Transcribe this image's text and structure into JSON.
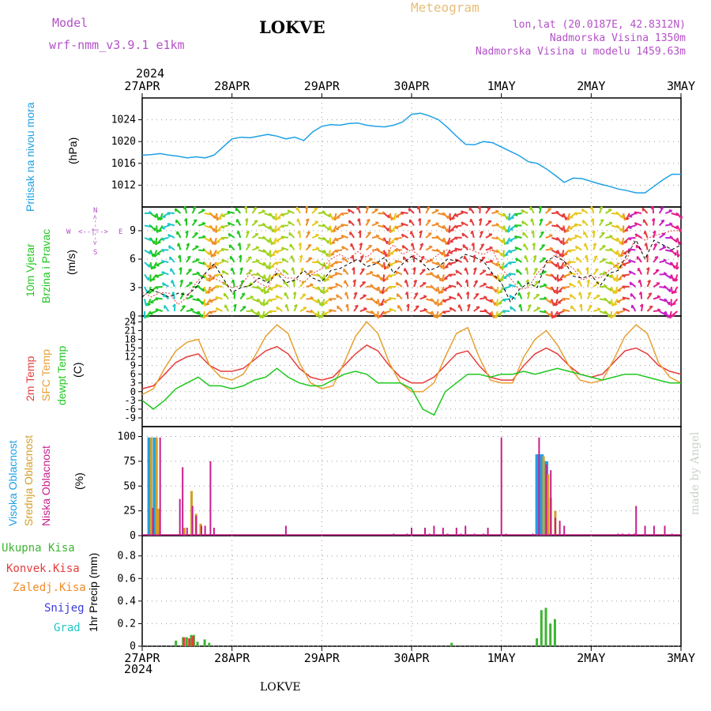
{
  "header": {
    "model_label": "Model",
    "model_name": "wrf-nmm_v3.9.1 e1km",
    "station": "LOKVE",
    "meteogram": "Meteogram",
    "lonlat": "lon,lat (20.0187E, 42.8312N)",
    "elevation": "Nadmorska Visina 1350m",
    "elevation_model": "Nadmorska Visina u modelu 1459.63m",
    "footer_station": "LOKVE",
    "watermark": "made by Angel"
  },
  "colors": {
    "pressure": "#1ea0e6",
    "temp2m": "#e63c3c",
    "sfc": "#e6a032",
    "dew": "#1ec81e",
    "cloud_high": "#1ea0e6",
    "cloud_mid": "#d2a028",
    "cloud_low": "#c81e8c",
    "precip_total": "#3cb432",
    "precip_conv": "#e63c3c",
    "precip_frz": "#f08c28",
    "precip_snow": "#3c3cdc",
    "precip_grad": "#1ec8c8",
    "wind_speed": "#000000",
    "wind_gust": "#e63c3c"
  },
  "time_axis": {
    "top_year": "2024",
    "bottom_year": "2024",
    "labels": [
      "27APR",
      "28APR",
      "29APR",
      "30APR",
      "1MAY",
      "2MAY",
      "3MAY"
    ]
  },
  "panel_labels": {
    "pressure": {
      "title": "Pritisak na nivou mora",
      "unit": "(hPa)"
    },
    "wind": {
      "title1": "10m Vjetar",
      "title2": "Brzina i Pravac",
      "unit": "(m/s)",
      "compass_n": "N",
      "compass_w": "W",
      "compass_e": "E",
      "compass_s": "S",
      "compass_arrow_v": "<--|-->",
      "compass_arrow_h": "<--|-->"
    },
    "temp": {
      "t2m": "2m Temp",
      "sfc": "SFC Temp",
      "dew": "dewpt Temp",
      "unit": "(C)"
    },
    "cloud": {
      "high": "Visoka Oblacnost",
      "mid": "Srednja Oblacnost",
      "low": "Niska Oblacnost",
      "unit": "(%)"
    },
    "precip": {
      "total": "Ukupna Kisa",
      "conv": "Konvek.Kisa",
      "frz": "Zaledj.Kisa",
      "snow": "Snijeg",
      "grad": "Grad",
      "unit": "1hr Precip (mm)"
    }
  },
  "chart_data": [
    {
      "type": "line",
      "name": "pressure",
      "x_days": [
        0,
        0.1,
        0.2,
        0.3,
        0.4,
        0.5,
        0.6,
        0.7,
        0.8,
        0.9,
        1.0,
        1.1,
        1.2,
        1.3,
        1.4,
        1.5,
        1.6,
        1.7,
        1.8,
        1.9,
        2.0,
        2.1,
        2.2,
        2.3,
        2.4,
        2.5,
        2.6,
        2.7,
        2.8,
        2.9,
        3.0,
        3.1,
        3.2,
        3.3,
        3.4,
        3.5,
        3.6,
        3.7,
        3.8,
        3.9,
        4.0,
        4.1,
        4.2,
        4.3,
        4.4,
        4.5,
        4.6,
        4.7,
        4.8,
        4.9,
        5.0,
        5.1,
        5.2,
        5.3,
        5.4,
        5.5,
        5.6,
        5.7,
        5.8,
        5.9,
        6.0
      ],
      "values": [
        1017.5,
        1017.6,
        1017.8,
        1017.5,
        1017.3,
        1017.0,
        1017.2,
        1017.0,
        1017.5,
        1019.0,
        1020.5,
        1020.8,
        1020.7,
        1021.0,
        1021.3,
        1021.0,
        1020.5,
        1020.8,
        1020.2,
        1021.8,
        1022.8,
        1023.1,
        1023.0,
        1023.3,
        1023.4,
        1023.0,
        1022.8,
        1022.7,
        1023.0,
        1023.6,
        1025.0,
        1025.2,
        1024.7,
        1024.0,
        1022.6,
        1021.0,
        1019.5,
        1019.4,
        1020.0,
        1019.8,
        1019.0,
        1018.2,
        1017.4,
        1016.3,
        1016.0,
        1015.0,
        1013.8,
        1012.5,
        1013.3,
        1013.2,
        1012.7,
        1012.2,
        1011.8,
        1011.3,
        1011.0,
        1010.6,
        1010.6,
        1011.8,
        1013.0,
        1014.0,
        1014.0
      ],
      "ylim": [
        1008,
        1028
      ],
      "yticks": [
        1012,
        1016,
        1020,
        1024
      ]
    },
    {
      "type": "line",
      "name": "wind",
      "x_days": [
        0,
        0.1,
        0.2,
        0.3,
        0.4,
        0.5,
        0.6,
        0.7,
        0.8,
        0.9,
        1.0,
        1.1,
        1.2,
        1.3,
        1.4,
        1.5,
        1.6,
        1.7,
        1.8,
        1.9,
        2.0,
        2.1,
        2.2,
        2.3,
        2.4,
        2.5,
        2.6,
        2.7,
        2.8,
        2.9,
        3.0,
        3.1,
        3.2,
        3.3,
        3.4,
        3.5,
        3.6,
        3.7,
        3.8,
        3.9,
        4.0,
        4.1,
        4.2,
        4.3,
        4.4,
        4.5,
        4.6,
        4.7,
        4.8,
        4.9,
        5.0,
        5.1,
        5.2,
        5.3,
        5.4,
        5.5,
        5.6,
        5.7,
        5.8,
        5.9,
        6.0
      ],
      "speed": [
        2.0,
        2.8,
        2.4,
        2.0,
        2.4,
        2.2,
        3.0,
        4.5,
        5.5,
        4.0,
        2.5,
        3.0,
        3.2,
        4.0,
        3.5,
        4.5,
        3.5,
        3.8,
        4.8,
        4.0,
        3.6,
        4.8,
        5.0,
        5.5,
        6.0,
        5.2,
        5.5,
        6.2,
        4.5,
        5.5,
        6.3,
        5.8,
        4.8,
        5.2,
        6.0,
        5.8,
        6.5,
        6.2,
        5.8,
        4.5,
        3.5,
        1.5,
        2.8,
        3.5,
        3.0,
        5.8,
        6.3,
        5.8,
        4.2,
        4.0,
        4.3,
        3.2,
        4.5,
        4.8,
        6.5,
        8.0,
        6.0,
        8.0,
        7.5,
        7.0,
        7.5
      ],
      "gust": [
        2.5,
        2.0,
        2.5,
        2.4,
        1.2,
        2.0,
        3.5,
        4.5,
        4.0,
        3.5,
        3.0,
        3.2,
        4.5,
        3.5,
        3.0,
        5.0,
        4.0,
        4.0,
        3.5,
        4.5,
        5.0,
        6.0,
        6.5,
        6.0,
        6.8,
        6.2,
        7.0,
        6.5,
        7.5,
        6.5,
        7.0,
        6.2,
        5.8,
        6.5,
        7.0,
        6.8,
        7.3,
        6.8,
        6.5,
        7.0,
        5.0,
        4.0,
        2.8,
        3.0,
        4.5,
        5.5,
        6.5,
        5.8,
        5.0,
        3.8,
        4.2,
        4.0,
        4.8,
        5.5,
        6.0,
        8.5,
        8.0,
        8.5,
        8.7,
        9.0,
        9.0
      ],
      "ylim": [
        0,
        11.5
      ],
      "yticks": [
        0,
        3,
        6,
        9
      ]
    },
    {
      "type": "line",
      "name": "temperature",
      "x_days": [
        0,
        0.125,
        0.25,
        0.375,
        0.5,
        0.625,
        0.75,
        0.875,
        1.0,
        1.125,
        1.25,
        1.375,
        1.5,
        1.625,
        1.75,
        1.875,
        2.0,
        2.125,
        2.25,
        2.375,
        2.5,
        2.625,
        2.75,
        2.875,
        3.0,
        3.125,
        3.25,
        3.375,
        3.5,
        3.625,
        3.75,
        3.875,
        4.0,
        4.125,
        4.25,
        4.375,
        4.5,
        4.625,
        4.75,
        4.875,
        5.0,
        5.125,
        5.25,
        5.375,
        5.5,
        5.625,
        5.75,
        5.875,
        6.0
      ],
      "series": [
        {
          "name": "2m Temp",
          "values": [
            1,
            2,
            6,
            10,
            12,
            13,
            9,
            7,
            7,
            8,
            11,
            14,
            15.5,
            13,
            8,
            5,
            4,
            5,
            9,
            13,
            16,
            14,
            9,
            5,
            3,
            3,
            5,
            9,
            13,
            14,
            9,
            5,
            4,
            4,
            9,
            13,
            15,
            13,
            9,
            6,
            5,
            6,
            10,
            14,
            15,
            13,
            9,
            7,
            6
          ]
        },
        {
          "name": "SFC Temp",
          "values": [
            -1,
            1,
            8,
            14,
            17,
            18,
            9,
            5,
            4,
            6,
            12,
            19,
            23,
            20,
            10,
            3,
            1,
            2,
            10,
            19,
            24,
            20,
            10,
            3,
            0,
            0,
            3,
            12,
            20,
            22,
            12,
            4,
            3,
            3,
            12,
            18,
            21,
            16,
            9,
            4,
            3,
            4,
            11,
            19,
            23,
            20,
            10,
            5,
            3
          ]
        },
        {
          "name": "dewpt Temp",
          "values": [
            -3,
            -6,
            -3,
            1,
            3,
            5,
            2,
            2,
            1,
            2,
            4,
            5,
            8,
            5,
            3,
            2,
            2,
            4,
            6,
            7,
            6,
            3,
            3,
            3,
            1,
            -6,
            -8,
            0,
            3,
            6,
            6,
            5,
            6,
            6,
            7,
            6,
            7,
            8,
            7,
            6,
            5,
            4,
            5,
            6,
            6,
            5,
            4,
            3,
            3
          ]
        }
      ],
      "ylim": [
        -12,
        26
      ],
      "yticks": [
        -9,
        -6,
        -3,
        0,
        3,
        6,
        9,
        12,
        15,
        18,
        21,
        24
      ]
    },
    {
      "type": "bar",
      "name": "cloud cover",
      "series": [
        {
          "name": "Visoka Oblacnost",
          "x_days": [
            0.08,
            0.14,
            4.4,
            4.45,
            4.5
          ],
          "values": [
            99,
            99,
            82,
            82,
            75
          ]
        },
        {
          "name": "Srednja Oblacnost",
          "x_days": [
            0.1,
            0.16,
            0.18,
            0.47,
            0.55,
            0.6,
            0.65,
            4.47,
            4.52,
            4.55,
            4.6
          ],
          "values": [
            99,
            99,
            27,
            8,
            45,
            22,
            12,
            80,
            62,
            38,
            25
          ]
        },
        {
          "name": "Niska Oblacnost",
          "x_days": [
            0.12,
            0.2,
            0.42,
            0.45,
            0.5,
            0.56,
            0.6,
            0.66,
            0.7,
            0.76,
            0.8,
            1.6,
            2.8,
            2.95,
            3.0,
            3.15,
            3.2,
            3.25,
            3.35,
            3.4,
            3.5,
            3.55,
            3.6,
            3.7,
            3.8,
            3.85,
            4.0,
            4.05,
            4.35,
            4.42,
            4.5,
            4.55,
            4.6,
            4.65,
            4.7,
            5.3,
            5.35,
            5.42,
            5.48,
            5.5,
            5.6,
            5.7,
            5.82,
            5.9
          ],
          "values": [
            28,
            99,
            37,
            69,
            8,
            30,
            20,
            10,
            10,
            75,
            8,
            10,
            2,
            2,
            8,
            8,
            2,
            10,
            8,
            2,
            8,
            2,
            10,
            2,
            2,
            8,
            99,
            2,
            2,
            99,
            72,
            66,
            18,
            15,
            10,
            2,
            2,
            2,
            2,
            30,
            10,
            10,
            10,
            2
          ]
        }
      ],
      "ylim": [
        0,
        110
      ],
      "yticks": [
        0,
        25,
        50,
        75,
        100
      ]
    },
    {
      "type": "bar",
      "name": "precipitation",
      "series": [
        {
          "name": "Ukupna Kisa",
          "x_days": [
            0.38,
            0.46,
            0.5,
            0.55,
            0.58,
            0.62,
            0.7,
            0.75,
            3.45,
            4.4,
            4.45,
            4.5,
            4.55,
            4.6
          ],
          "values": [
            0.05,
            0.08,
            0.08,
            0.1,
            0.1,
            0.04,
            0.06,
            0.03,
            0.03,
            0.07,
            0.32,
            0.34,
            0.2,
            0.24
          ]
        },
        {
          "name": "Konvek.Kisa",
          "x_days": [
            0.47,
            0.53,
            0.57
          ],
          "values": [
            0.08,
            0.07,
            0.09
          ]
        }
      ],
      "ylim": [
        0,
        0.98
      ],
      "yticks": [
        0,
        0.2,
        0.4,
        0.6,
        0.8
      ]
    }
  ]
}
